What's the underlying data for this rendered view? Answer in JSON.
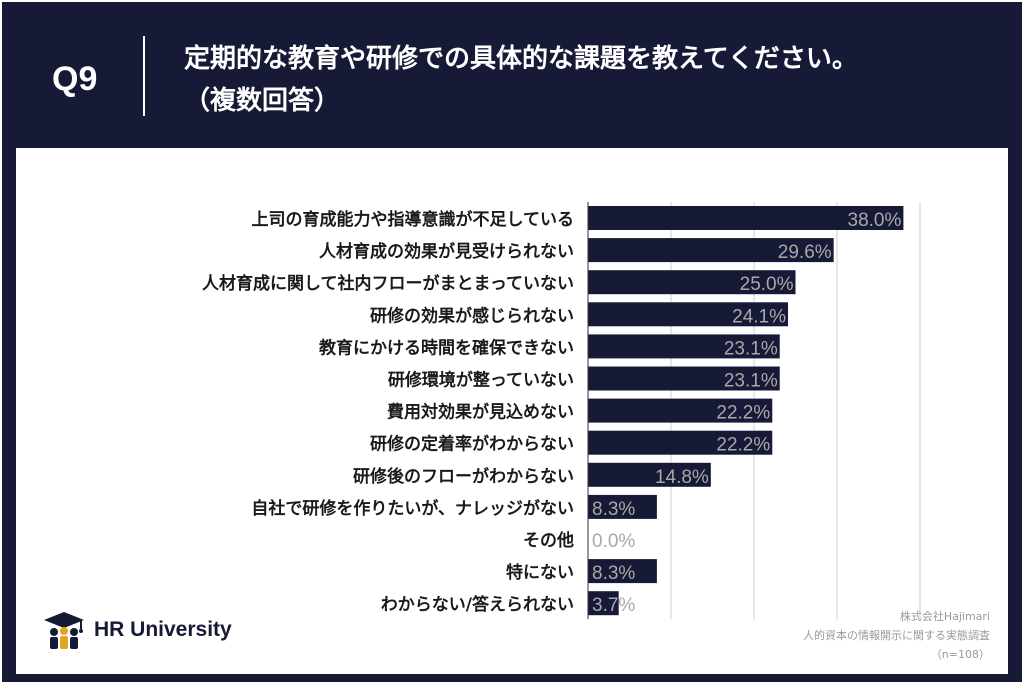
{
  "header": {
    "question_number": "Q9",
    "title": "定期的な教育や研修での具体的な課題を教えてください。\n（複数回答）"
  },
  "brand": {
    "logo_text": "HR University",
    "logo_icon": "graduation-cap-people-icon"
  },
  "source": {
    "company": "株式会社Hajimari",
    "survey": "人的資本の情報開示に関する実態調査",
    "sample": "（n=108）"
  },
  "colors": {
    "navy": "#171a36",
    "bar": "#171a36",
    "value_label": "#a9a9a9",
    "grid": "#cfcfcf"
  },
  "chart_data": {
    "type": "bar",
    "orientation": "horizontal",
    "title": "",
    "xlabel": "",
    "ylabel": "",
    "xlim": [
      0,
      40
    ],
    "grid": true,
    "categories": [
      "上司の育成能力や指導意識が不足している",
      "人材育成の効果が見受けられない",
      "人材育成に関して社内フローがまとまっていない",
      "研修の効果が感じられない",
      "教育にかける時間を確保できない",
      "研修環境が整っていない",
      "費用対効果が見込めない",
      "研修の定着率がわからない",
      "研修後のフローがわからない",
      "自社で研修を作りたいが、ナレッジがない",
      "その他",
      "特にない",
      "わからない/答えられない"
    ],
    "values": [
      38.0,
      29.6,
      25.0,
      24.1,
      23.1,
      23.1,
      22.2,
      22.2,
      14.8,
      8.3,
      0.0,
      8.3,
      3.7
    ],
    "value_labels": [
      "38.0%",
      "29.6%",
      "25.0%",
      "24.1%",
      "23.1%",
      "23.1%",
      "22.2%",
      "22.2%",
      "14.8%",
      "8.3%",
      "0.0%",
      "8.3%",
      "3.7%"
    ]
  }
}
